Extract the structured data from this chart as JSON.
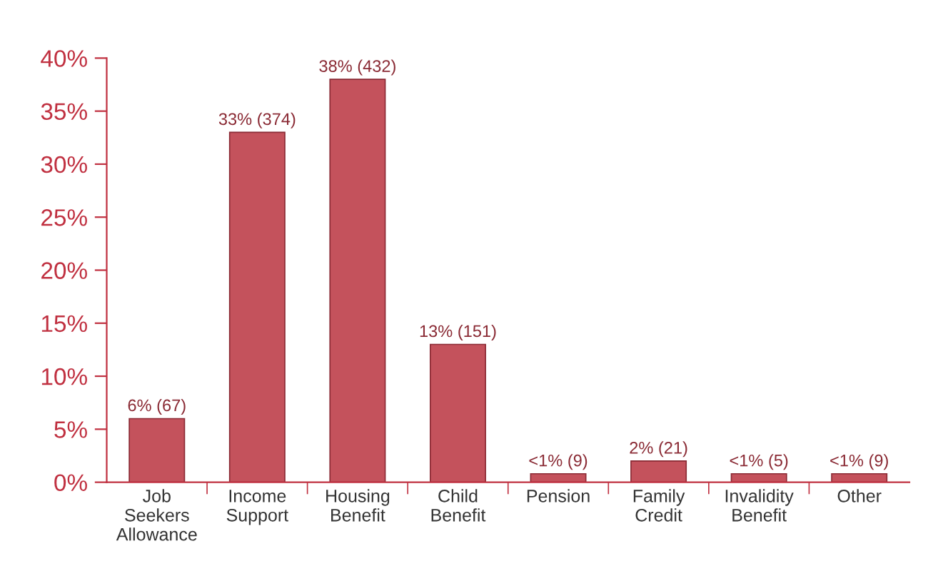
{
  "chart_data": {
    "type": "bar",
    "categories": [
      "Job\nSeekers\nAllowance",
      "Income\nSupport",
      "Housing\nBenefit",
      "Child\nBenefit",
      "Pension",
      "Family\nCredit",
      "Invalidity\nBenefit",
      "Other"
    ],
    "values": [
      6,
      33,
      38,
      13,
      0.8,
      2,
      0.8,
      0.8
    ],
    "value_labels": [
      "6% (67)",
      "33% (374)",
      "38% (432)",
      "13% (151)",
      "<1% (9)",
      "2% (21)",
      "<1% (5)",
      "<1% (9)"
    ],
    "color": "#c4525c",
    "ylim": [
      0,
      40
    ],
    "yticks": [
      {
        "value": 0,
        "label": "0%"
      },
      {
        "value": 5,
        "label": "5%"
      },
      {
        "value": 10,
        "label": "10%"
      },
      {
        "value": 15,
        "label": "15%"
      },
      {
        "value": 20,
        "label": "20%"
      },
      {
        "value": 25,
        "label": "25%"
      },
      {
        "value": 30,
        "label": "30%"
      },
      {
        "value": 35,
        "label": "35%"
      },
      {
        "value": 40,
        "label": "40%"
      }
    ],
    "grid": false,
    "legend": false
  }
}
